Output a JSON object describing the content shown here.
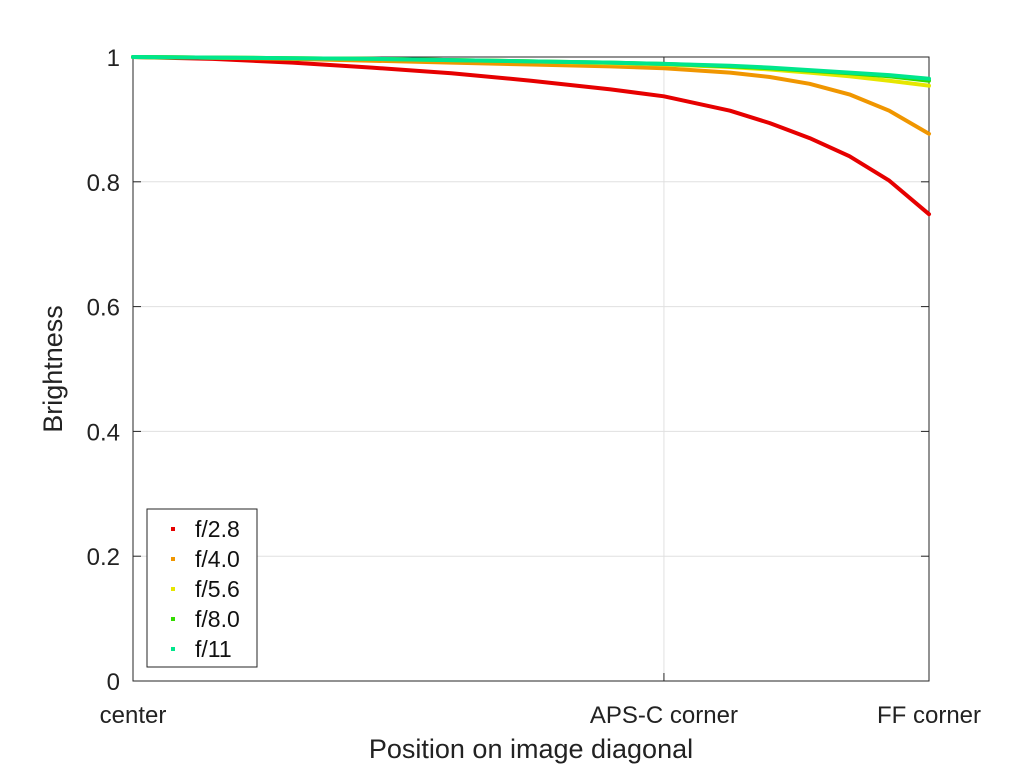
{
  "chart_data": {
    "type": "line",
    "title": "",
    "xlabel": "Position on image diagonal",
    "ylabel": "Brightness",
    "xlim": [
      0,
      1
    ],
    "ylim": [
      0,
      1
    ],
    "x_ticks": [
      {
        "value": 0,
        "label": "center"
      },
      {
        "value": 0.667,
        "label": "APS-C corner"
      },
      {
        "value": 1,
        "label": "FF corner"
      }
    ],
    "y_ticks": [
      {
        "value": 0,
        "label": "0"
      },
      {
        "value": 0.2,
        "label": "0.2"
      },
      {
        "value": 0.4,
        "label": "0.4"
      },
      {
        "value": 0.6,
        "label": "0.6"
      },
      {
        "value": 0.8,
        "label": "0.8"
      },
      {
        "value": 1,
        "label": "1"
      }
    ],
    "grid": true,
    "legend_position": "bottom-left",
    "x": [
      0,
      0.1,
      0.2,
      0.3,
      0.4,
      0.5,
      0.6,
      0.667,
      0.75,
      0.8,
      0.85,
      0.9,
      0.95,
      1.0
    ],
    "series": [
      {
        "name": "f/2.8",
        "color": "#e60000",
        "values": [
          1.0,
          0.997,
          0.991,
          0.983,
          0.974,
          0.962,
          0.948,
          0.937,
          0.914,
          0.894,
          0.87,
          0.841,
          0.802,
          0.748
        ]
      },
      {
        "name": "f/4.0",
        "color": "#f09600",
        "values": [
          1.0,
          0.999,
          0.997,
          0.994,
          0.991,
          0.988,
          0.985,
          0.982,
          0.975,
          0.968,
          0.957,
          0.94,
          0.914,
          0.877
        ]
      },
      {
        "name": "f/5.6",
        "color": "#e6e600",
        "values": [
          1.0,
          0.999,
          0.998,
          0.997,
          0.995,
          0.993,
          0.99,
          0.988,
          0.984,
          0.98,
          0.975,
          0.969,
          0.962,
          0.954
        ]
      },
      {
        "name": "f/8.0",
        "color": "#32dc00",
        "values": [
          1.0,
          0.999,
          0.998,
          0.997,
          0.995,
          0.993,
          0.991,
          0.989,
          0.985,
          0.982,
          0.978,
          0.974,
          0.969,
          0.962
        ]
      },
      {
        "name": "f/11",
        "color": "#00e68c",
        "values": [
          1.0,
          0.999,
          0.998,
          0.997,
          0.995,
          0.993,
          0.991,
          0.989,
          0.986,
          0.983,
          0.979,
          0.975,
          0.971,
          0.965
        ]
      }
    ]
  }
}
